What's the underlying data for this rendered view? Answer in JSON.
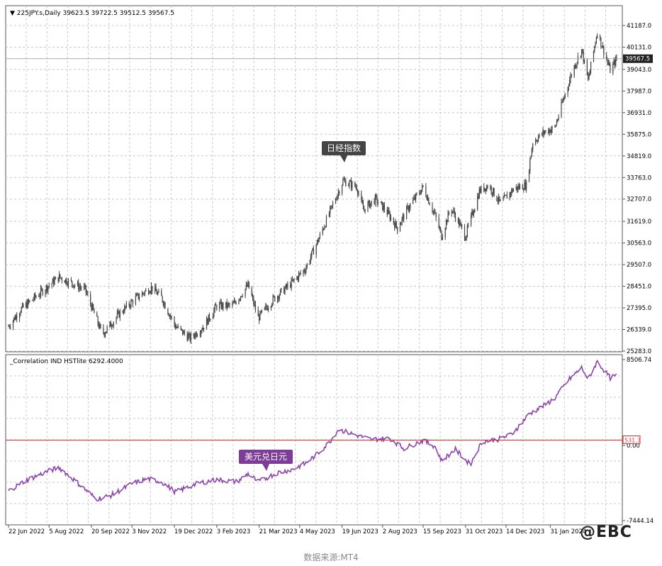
{
  "chart_data": [
    {
      "type": "candlestick",
      "title": "225JPY.s,Daily",
      "ohlc_readout": "39623.5 39722.5 39512.5 39567.5",
      "y_ticks": [
        "41187.0",
        "40131.0",
        "39043.0",
        "37987.0",
        "36931.0",
        "35875.0",
        "34819.0",
        "33763.0",
        "32707.0",
        "31619.0",
        "30563.0",
        "29507.0",
        "28451.0",
        "27395.0",
        "26339.0",
        "25283.0"
      ],
      "ylim": [
        25283.0,
        41187.0
      ],
      "current_price": "39567.5",
      "current_price_value": 39567.5,
      "annotation": "日经指数",
      "series_keypoints": [
        {
          "date": "2022-06-22",
          "close": 26500
        },
        {
          "date": "2022-07-05",
          "close": 27300
        },
        {
          "date": "2022-08-05",
          "close": 28500
        },
        {
          "date": "2022-08-16",
          "close": 28900
        },
        {
          "date": "2022-09-13",
          "close": 28300
        },
        {
          "date": "2022-09-30",
          "close": 26300
        },
        {
          "date": "2022-10-04",
          "close": 26200
        },
        {
          "date": "2022-10-20",
          "close": 27100
        },
        {
          "date": "2022-11-08",
          "close": 27900
        },
        {
          "date": "2022-11-24",
          "close": 28400
        },
        {
          "date": "2022-12-05",
          "close": 27900
        },
        {
          "date": "2022-12-20",
          "close": 26500
        },
        {
          "date": "2023-01-05",
          "close": 25900
        },
        {
          "date": "2023-01-20",
          "close": 26500
        },
        {
          "date": "2023-02-03",
          "close": 27500
        },
        {
          "date": "2023-02-20",
          "close": 27500
        },
        {
          "date": "2023-03-09",
          "close": 28500
        },
        {
          "date": "2023-03-20",
          "close": 26900
        },
        {
          "date": "2023-04-05",
          "close": 27800
        },
        {
          "date": "2023-04-25",
          "close": 28600
        },
        {
          "date": "2023-05-10",
          "close": 29300
        },
        {
          "date": "2023-05-25",
          "close": 30800
        },
        {
          "date": "2023-06-05",
          "close": 32000
        },
        {
          "date": "2023-06-20",
          "close": 33600
        },
        {
          "date": "2023-07-05",
          "close": 33300
        },
        {
          "date": "2023-07-12",
          "close": 32200
        },
        {
          "date": "2023-07-25",
          "close": 32700
        },
        {
          "date": "2023-08-05",
          "close": 32200
        },
        {
          "date": "2023-08-18",
          "close": 31300
        },
        {
          "date": "2023-08-30",
          "close": 32300
        },
        {
          "date": "2023-09-15",
          "close": 33300
        },
        {
          "date": "2023-09-28",
          "close": 31900
        },
        {
          "date": "2023-10-05",
          "close": 30900
        },
        {
          "date": "2023-10-15",
          "close": 32300
        },
        {
          "date": "2023-10-31",
          "close": 30900
        },
        {
          "date": "2023-11-15",
          "close": 33100
        },
        {
          "date": "2023-11-25",
          "close": 33400
        },
        {
          "date": "2023-12-08",
          "close": 32500
        },
        {
          "date": "2023-12-22",
          "close": 33200
        },
        {
          "date": "2024-01-05",
          "close": 33400
        },
        {
          "date": "2024-01-12",
          "close": 35500
        },
        {
          "date": "2024-01-25",
          "close": 36000
        },
        {
          "date": "2024-02-05",
          "close": 36200
        },
        {
          "date": "2024-02-15",
          "close": 37700
        },
        {
          "date": "2024-02-25",
          "close": 39100
        },
        {
          "date": "2024-03-05",
          "close": 40000
        },
        {
          "date": "2024-03-12",
          "close": 38500
        },
        {
          "date": "2024-03-22",
          "close": 40900
        },
        {
          "date": "2024-04-05",
          "close": 39000
        },
        {
          "date": "2024-04-12",
          "close": 39567.5
        }
      ]
    },
    {
      "type": "line",
      "title": "_Correlation IND HSTlite 6292.4000",
      "y_ticks": [
        "8506.74",
        "0.00",
        "-7444.14"
      ],
      "ylim": [
        -7444.14,
        8506.74
      ],
      "level_label": "531.3",
      "level_value": 531.3,
      "annotation": "美元兑日元",
      "series_keypoints": [
        {
          "date": "2022-06-22",
          "value": -4500
        },
        {
          "date": "2022-07-10",
          "value": -3500
        },
        {
          "date": "2022-08-05",
          "value": -2500
        },
        {
          "date": "2022-08-16",
          "value": -2200
        },
        {
          "date": "2022-09-05",
          "value": -3700
        },
        {
          "date": "2022-09-25",
          "value": -5300
        },
        {
          "date": "2022-10-10",
          "value": -5000
        },
        {
          "date": "2022-11-03",
          "value": -3800
        },
        {
          "date": "2022-11-20",
          "value": -3300
        },
        {
          "date": "2022-12-05",
          "value": -3600
        },
        {
          "date": "2022-12-20",
          "value": -4600
        },
        {
          "date": "2023-01-15",
          "value": -3700
        },
        {
          "date": "2023-02-03",
          "value": -3400
        },
        {
          "date": "2023-02-25",
          "value": -3600
        },
        {
          "date": "2023-03-09",
          "value": -2800
        },
        {
          "date": "2023-03-20",
          "value": -3600
        },
        {
          "date": "2023-04-10",
          "value": -2700
        },
        {
          "date": "2023-04-25",
          "value": -2400
        },
        {
          "date": "2023-05-10",
          "value": -1800
        },
        {
          "date": "2023-05-25",
          "value": -700
        },
        {
          "date": "2023-06-05",
          "value": 300
        },
        {
          "date": "2023-06-15",
          "value": 1600
        },
        {
          "date": "2023-07-05",
          "value": 1000
        },
        {
          "date": "2023-07-20",
          "value": 600
        },
        {
          "date": "2023-08-10",
          "value": 700
        },
        {
          "date": "2023-08-25",
          "value": -300
        },
        {
          "date": "2023-09-15",
          "value": 500
        },
        {
          "date": "2023-09-28",
          "value": -100
        },
        {
          "date": "2023-10-05",
          "value": -1500
        },
        {
          "date": "2023-10-20",
          "value": -400
        },
        {
          "date": "2023-11-05",
          "value": -1900
        },
        {
          "date": "2023-11-18",
          "value": 400
        },
        {
          "date": "2023-12-05",
          "value": 600
        },
        {
          "date": "2023-12-20",
          "value": 1100
        },
        {
          "date": "2024-01-08",
          "value": 3100
        },
        {
          "date": "2024-01-25",
          "value": 4000
        },
        {
          "date": "2024-02-05",
          "value": 4700
        },
        {
          "date": "2024-02-20",
          "value": 6500
        },
        {
          "date": "2024-03-05",
          "value": 7700
        },
        {
          "date": "2024-03-12",
          "value": 6600
        },
        {
          "date": "2024-03-22",
          "value": 8300
        },
        {
          "date": "2024-04-05",
          "value": 6700
        },
        {
          "date": "2024-04-12",
          "value": 6900
        }
      ]
    }
  ],
  "x_axis_labels": [
    {
      "label": "22 Jun 2022",
      "date": "2022-06-22"
    },
    {
      "label": "5 Aug 2022",
      "date": "2022-08-05"
    },
    {
      "label": "20 Sep 2022",
      "date": "2022-09-20"
    },
    {
      "label": "3 Nov 2022",
      "date": "2022-11-03"
    },
    {
      "label": "19 Dec 2022",
      "date": "2022-12-19"
    },
    {
      "label": "3 Feb 2023",
      "date": "2023-02-03"
    },
    {
      "label": "21 Mar 2023",
      "date": "2023-03-21"
    },
    {
      "label": "4 May 2023",
      "date": "2023-05-04"
    },
    {
      "label": "19 Jun 2023",
      "date": "2023-06-19"
    },
    {
      "label": "2 Aug 2023",
      "date": "2023-08-02"
    },
    {
      "label": "15 Sep 2023",
      "date": "2023-09-15"
    },
    {
      "label": "31 Oct 2023",
      "date": "2023-10-31"
    },
    {
      "label": "14 Dec 2023",
      "date": "2023-12-14"
    },
    {
      "label": "31 Jan 2024",
      "date": "2024-01-31"
    }
  ],
  "colors": {
    "candles": "#444444",
    "correlation_line": "#8e44ad",
    "level_line": "#e03030",
    "grid": "#c8c8c8",
    "annotation_dark": "#444444",
    "annotation_purple": "#7d3c98"
  },
  "caption": "数据来源:MT4",
  "watermark": "@EBC"
}
